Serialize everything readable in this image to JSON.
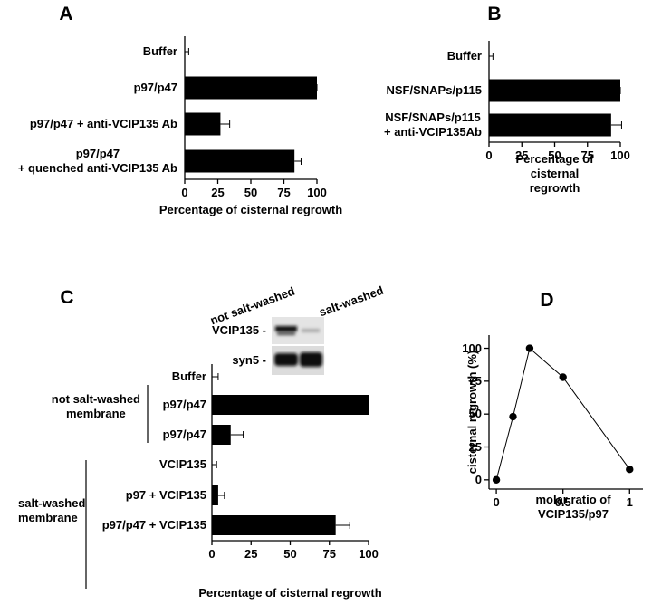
{
  "chart_data": [
    {
      "type": "bar",
      "panel": "A",
      "categories": [
        "Buffer",
        "p97/p47",
        "p97/p47 + anti-VCIP135 Ab",
        "p97/p47\n+ quenched anti-VCIP135 Ab"
      ],
      "values": [
        0,
        100,
        27,
        83
      ],
      "errors": [
        3,
        0,
        7,
        5
      ],
      "color": "#000000",
      "xlabel": "Percentage of cisternal regrowth",
      "xlim": [
        0,
        100
      ],
      "xticks": [
        0,
        25,
        50,
        75,
        100
      ]
    },
    {
      "type": "bar",
      "panel": "B",
      "categories": [
        "Buffer",
        "NSF/SNAPs/p115",
        "NSF/SNAPs/p115\n+ anti-VCIP135Ab"
      ],
      "values": [
        0,
        100,
        93
      ],
      "errors": [
        3,
        0,
        8
      ],
      "color": "#000000",
      "xlabel": "Percentage of cisternal regrowth",
      "xlim": [
        0,
        100
      ],
      "xticks": [
        0,
        25,
        50,
        75,
        100
      ]
    },
    {
      "type": "bar",
      "panel": "C",
      "blot": {
        "lanes": [
          "not salt-washed",
          "salt-washed"
        ],
        "rows": [
          "VCIP135 -",
          "syn5 -"
        ]
      },
      "groups": [
        "not salt-washed\nmembrane",
        "salt-washed\nmembrane"
      ],
      "categories": [
        "Buffer",
        "p97/p47",
        "p97/p47",
        "VCIP135",
        "p97 + VCIP135",
        "p97/p47 + VCIP135"
      ],
      "values": [
        0,
        100,
        12,
        0,
        4,
        79
      ],
      "errors": [
        4,
        0,
        8,
        3,
        4,
        9
      ],
      "color": "#000000",
      "xlabel": "Percentage of cisternal regrowth",
      "xlim": [
        0,
        100
      ],
      "xticks": [
        0,
        25,
        50,
        75,
        100
      ]
    },
    {
      "type": "line",
      "panel": "D",
      "x": [
        0,
        0.125,
        0.25,
        0.5,
        1
      ],
      "values": [
        0,
        48,
        100,
        78,
        8
      ],
      "color": "#000000",
      "markers": true,
      "xlabel": "molar ratio of VCIP135/p97",
      "ylabel": "cisternal regrowth (%)",
      "xlim": [
        -0.055,
        1.1
      ],
      "ylim": [
        -7,
        110
      ],
      "xticks": [
        0,
        0.5,
        1
      ],
      "yticks": [
        0,
        25,
        50,
        75,
        100
      ]
    }
  ]
}
